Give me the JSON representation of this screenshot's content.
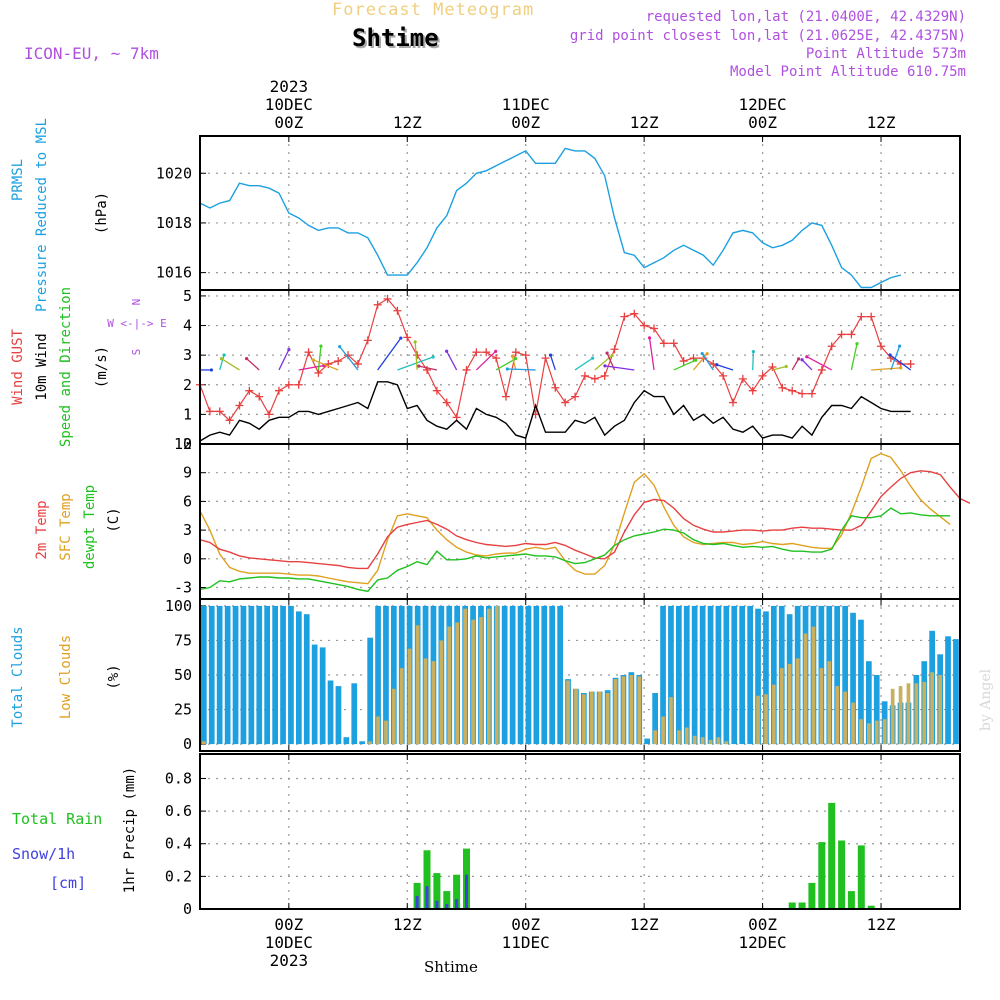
{
  "header": {
    "product": "Forecast Meteogram",
    "location": "Shtime",
    "model": "ICON-EU, ~ 7km",
    "requested": "requested lon,lat (21.0400E, 42.4329N)",
    "gridpoint": "grid point closest lon,lat (21.0625E, 42.4375N)",
    "point_alt": "Point Altitude 573m",
    "model_alt": "Model Point Altitude 610.75m",
    "credit": "by Angel",
    "footer": "Shtime"
  },
  "time_axis": {
    "year": "2023",
    "ticks": [
      "00Z",
      "12Z",
      "00Z",
      "12Z",
      "00Z",
      "12Z"
    ],
    "days": [
      "10DEC",
      "",
      "11DEC",
      "",
      "12DEC",
      ""
    ]
  },
  "colors": {
    "pressure": "#1ca0e0",
    "gust": "#e84040",
    "wind": "#000000",
    "temp": "#e84040",
    "sfc": "#e0a020",
    "dewpt": "#20c020",
    "total_cloud": "#1ca0e0",
    "low_cloud": "#c8b060",
    "rain": "#20c020",
    "snow": "#4040e0",
    "direction": "#b050e0"
  },
  "panels": {
    "pressure": {
      "label1": "PRMSL",
      "label2": "Pressure Reduced to MSL",
      "unit": "(hPa)",
      "yticks": [
        "1016",
        "1018",
        "1020"
      ]
    },
    "wind": {
      "label1": "Wind GUST",
      "label2": "10m Wind",
      "label3": "Speed and Direction",
      "unit": "(m/s)",
      "yticks": [
        "0",
        "1",
        "2",
        "3",
        "4",
        "5"
      ],
      "compass_n": "N",
      "compass_s": "S",
      "compass_ew": "W <-|-> E"
    },
    "temp": {
      "label1": "2m Temp",
      "label2": "SFC Temp",
      "label3": "dewpt Temp",
      "unit": "(C)",
      "yticks": [
        "-3",
        "0",
        "3",
        "6",
        "9",
        "12"
      ]
    },
    "clouds": {
      "label1": "Total Clouds",
      "label2": "Low Clouds",
      "unit": "(%)",
      "yticks": [
        "0",
        "25",
        "50",
        "75",
        "100"
      ]
    },
    "precip": {
      "label1": "Total  Rain",
      "label2": "Snow/1h",
      "label3": "[cm]",
      "unit": "1hr Precip (mm)",
      "yticks": [
        "0",
        "0.2",
        "0.4",
        "0.6",
        "0.8"
      ]
    }
  },
  "chart_data": [
    {
      "type": "line",
      "title": "PRMSL Pressure Reduced to MSL",
      "ylabel": "(hPa)",
      "ylim": [
        1015.3,
        1021.5
      ],
      "x_hours_start": -9,
      "x_step_hours": 1,
      "series": [
        {
          "name": "PRMSL",
          "values": [
            1018.8,
            1018.6,
            1018.8,
            1018.9,
            1019.6,
            1019.5,
            1019.5,
            1019.4,
            1019.2,
            1018.4,
            1018.2,
            1017.9,
            1017.7,
            1017.8,
            1017.8,
            1017.6,
            1017.6,
            1017.4,
            1016.7,
            1015.9,
            1015.9,
            1015.9,
            1016.4,
            1017.0,
            1017.8,
            1018.3,
            1019.3,
            1019.6,
            1020.0,
            1020.1,
            1020.3,
            1020.5,
            1020.7,
            1020.9,
            1020.4,
            1020.4,
            1020.4,
            1021.0,
            1020.9,
            1020.9,
            1020.6,
            1019.9,
            1018.2,
            1016.8,
            1016.7,
            1016.2,
            1016.4,
            1016.6,
            1016.9,
            1017.1,
            1016.9,
            1016.7,
            1016.3,
            1016.9,
            1017.6,
            1017.7,
            1017.6,
            1017.2,
            1017.0,
            1017.1,
            1017.3,
            1017.7,
            1018.0,
            1017.9,
            1017.1,
            1016.2,
            1015.9,
            1015.4,
            1015.4,
            1015.6,
            1015.8,
            1015.9
          ]
        }
      ]
    },
    {
      "type": "line",
      "title": "Wind GUST / 10m Wind Speed and Direction",
      "ylabel": "(m/s)",
      "ylim": [
        0,
        5.2
      ],
      "x_hours_start": -9,
      "x_step_hours": 1,
      "series": [
        {
          "name": "Wind GUST",
          "values": [
            2.0,
            1.1,
            1.1,
            0.8,
            1.3,
            1.8,
            1.6,
            1.0,
            1.8,
            2.0,
            2.0,
            3.1,
            2.4,
            2.7,
            2.8,
            3.0,
            2.7,
            3.5,
            4.7,
            4.9,
            4.5,
            3.6,
            3.0,
            2.5,
            1.8,
            1.4,
            0.9,
            2.5,
            3.1,
            3.1,
            2.9,
            1.6,
            3.1,
            3.0,
            1.0,
            2.9,
            1.9,
            1.4,
            1.6,
            2.3,
            2.2,
            2.3,
            3.2,
            4.3,
            4.4,
            4.0,
            3.9,
            3.4,
            3.4,
            2.8,
            2.9,
            2.9,
            2.7,
            2.3,
            1.4,
            2.2,
            1.8,
            2.3,
            2.6,
            1.9,
            1.8,
            1.7,
            1.7,
            2.5,
            3.3,
            3.7,
            3.7,
            4.3,
            4.3,
            3.3,
            2.9,
            2.7,
            2.7
          ]
        },
        {
          "name": "10m Wind",
          "values": [
            0.1,
            0.3,
            0.4,
            0.3,
            0.8,
            0.7,
            0.5,
            0.8,
            0.9,
            0.9,
            1.1,
            1.1,
            1.0,
            1.1,
            1.2,
            1.3,
            1.4,
            1.2,
            2.1,
            2.1,
            2.0,
            1.2,
            1.3,
            0.8,
            0.6,
            0.5,
            0.8,
            0.5,
            1.2,
            1.0,
            0.9,
            0.7,
            0.3,
            0.2,
            1.3,
            0.4,
            0.4,
            0.4,
            0.8,
            0.7,
            0.9,
            0.3,
            0.6,
            0.8,
            1.4,
            1.8,
            1.6,
            1.6,
            1.0,
            1.3,
            0.8,
            1.0,
            0.7,
            0.9,
            0.5,
            0.4,
            0.6,
            0.2,
            0.3,
            0.3,
            0.2,
            0.6,
            0.3,
            0.9,
            1.3,
            1.3,
            1.2,
            1.6,
            1.4,
            1.2,
            1.1,
            1.1,
            1.1
          ]
        }
      ]
    },
    {
      "type": "line",
      "title": "2m Temp / SFC Temp / dewpt Temp",
      "ylabel": "(C)",
      "ylim": [
        -4.2,
        12
      ],
      "x_hours_start": -9,
      "x_step_hours": 1,
      "series": [
        {
          "name": "2m Temp",
          "values": [
            2.0,
            1.7,
            1.0,
            0.7,
            0.3,
            0.1,
            0.0,
            -0.1,
            -0.2,
            -0.3,
            -0.3,
            -0.4,
            -0.5,
            -0.6,
            -0.7,
            -0.9,
            -1.0,
            -1.0,
            0.5,
            2.3,
            3.3,
            3.6,
            3.8,
            4.0,
            3.6,
            3.1,
            2.4,
            2.0,
            1.7,
            1.5,
            1.4,
            1.3,
            1.4,
            1.6,
            1.5,
            1.5,
            1.7,
            1.4,
            0.9,
            0.5,
            0.1,
            0.0,
            0.7,
            2.8,
            4.6,
            5.9,
            6.2,
            6.1,
            5.3,
            4.2,
            3.5,
            3.1,
            2.8,
            2.8,
            2.9,
            3.0,
            3.0,
            2.9,
            3.0,
            3.0,
            3.2,
            3.3,
            3.2,
            3.2,
            3.1,
            3.0,
            3.0,
            3.5,
            5.0,
            6.5,
            7.5,
            8.4,
            9.0,
            9.2,
            9.1,
            8.8,
            7.5,
            6.3,
            5.8
          ]
        },
        {
          "name": "SFC Temp",
          "values": [
            5.0,
            3.0,
            0.5,
            -0.9,
            -1.3,
            -1.5,
            -1.5,
            -1.5,
            -1.5,
            -1.6,
            -1.7,
            -1.7,
            -1.8,
            -2.0,
            -2.2,
            -2.4,
            -2.5,
            -2.6,
            -1.2,
            2.0,
            4.5,
            4.7,
            4.5,
            4.3,
            3.0,
            2.0,
            1.2,
            0.7,
            0.4,
            0.3,
            0.5,
            0.6,
            0.6,
            1.0,
            1.2,
            1.0,
            1.2,
            -0.2,
            -1.2,
            -1.6,
            -1.6,
            -0.7,
            1.5,
            4.8,
            8.0,
            8.9,
            7.7,
            5.4,
            3.5,
            2.3,
            1.7,
            1.5,
            1.6,
            1.7,
            1.7,
            1.5,
            1.6,
            1.8,
            1.6,
            1.5,
            1.6,
            1.4,
            1.2,
            1.1,
            1.1,
            2.5,
            4.8,
            7.5,
            10.5,
            11.0,
            10.6,
            9.2,
            7.6,
            6.2,
            5.2,
            4.4,
            3.6
          ]
        },
        {
          "name": "dewpt Temp",
          "values": [
            -3.2,
            -3.0,
            -2.3,
            -2.4,
            -2.1,
            -2.0,
            -1.9,
            -1.9,
            -2.0,
            -2.0,
            -2.1,
            -2.1,
            -2.3,
            -2.5,
            -2.7,
            -2.9,
            -3.2,
            -3.4,
            -2.2,
            -2.0,
            -1.2,
            -0.8,
            -0.3,
            -0.6,
            0.8,
            -0.1,
            -0.1,
            0.0,
            0.3,
            0.1,
            0.2,
            0.3,
            0.4,
            0.5,
            0.3,
            0.3,
            0.2,
            -0.2,
            -0.5,
            -0.4,
            0.0,
            0.4,
            1.4,
            2.0,
            2.4,
            2.6,
            2.8,
            3.1,
            3.0,
            2.7,
            2.0,
            1.6,
            1.5,
            1.6,
            1.4,
            1.2,
            1.3,
            1.2,
            1.3,
            1.0,
            0.8,
            0.8,
            0.7,
            0.7,
            1.0,
            3.0,
            4.5,
            4.3,
            4.3,
            4.5,
            5.3,
            4.7,
            4.8,
            4.6,
            4.5,
            4.5,
            4.5
          ]
        }
      ]
    },
    {
      "type": "bar",
      "title": "Total Clouds / Low Clouds",
      "ylabel": "(%)",
      "ylim": [
        -5,
        105
      ],
      "x_hours_start": -9,
      "x_step_hours": 1,
      "series": [
        {
          "name": "Total Clouds",
          "values": [
            100,
            100,
            100,
            100,
            100,
            100,
            100,
            100,
            100,
            100,
            100,
            100,
            96,
            94,
            72,
            70,
            46,
            42,
            5,
            44,
            2,
            77,
            100,
            100,
            100,
            100,
            100,
            100,
            100,
            100,
            100,
            100,
            100,
            100,
            100,
            100,
            100,
            100,
            100,
            100,
            100,
            100,
            100,
            100,
            100,
            100,
            47,
            40,
            37,
            38,
            38,
            39,
            48,
            50,
            52,
            50,
            4,
            37,
            100,
            100,
            100,
            100,
            100,
            100,
            100,
            100,
            100,
            100,
            100,
            100,
            98,
            96,
            100,
            100,
            94,
            100,
            100,
            100,
            100,
            100,
            100,
            100,
            95,
            90,
            60,
            50,
            31,
            28,
            30,
            30,
            50,
            60,
            82,
            65,
            78,
            76
          ]
        },
        {
          "name": "Low Clouds",
          "values": [
            2,
            0,
            0,
            0,
            0,
            0,
            0,
            0,
            0,
            0,
            0,
            0,
            0,
            0,
            0,
            0,
            0,
            0,
            0,
            0,
            0,
            2,
            20,
            17,
            40,
            55,
            69,
            86,
            62,
            60,
            75,
            85,
            88,
            98,
            90,
            92,
            98,
            100,
            0,
            0,
            0,
            0,
            0,
            0,
            0,
            0,
            46,
            40,
            36,
            38,
            38,
            37,
            47,
            49,
            50,
            49,
            0,
            10,
            20,
            34,
            10,
            12,
            6,
            5,
            3,
            5,
            2,
            0,
            0,
            0,
            35,
            36,
            43,
            55,
            58,
            62,
            80,
            85,
            55,
            60,
            42,
            38,
            30,
            18,
            15,
            17,
            18,
            40,
            42,
            44,
            44,
            45,
            52,
            50
          ]
        }
      ]
    },
    {
      "type": "bar",
      "title": "1hr Precip",
      "ylabel": "1hr Precip (mm)",
      "ylim": [
        0,
        0.95
      ],
      "x_hours_start": -9,
      "x_step_hours": 1,
      "series": [
        {
          "name": "Total Rain",
          "values": [
            0,
            0,
            0,
            0,
            0,
            0,
            0,
            0,
            0,
            0,
            0,
            0,
            0,
            0,
            0,
            0,
            0,
            0,
            0,
            0,
            0,
            0,
            0.16,
            0.36,
            0.22,
            0.11,
            0.21,
            0.37,
            0,
            0,
            0,
            0,
            0,
            0,
            0,
            0,
            0,
            0,
            0,
            0,
            0,
            0,
            0,
            0,
            0,
            0,
            0,
            0,
            0,
            0,
            0,
            0,
            0,
            0,
            0,
            0,
            0,
            0,
            0,
            0,
            0.04,
            0.04,
            0.16,
            0.41,
            0.65,
            0.42,
            0.11,
            0.39,
            0.02,
            0,
            0,
            0,
            0,
            0,
            0,
            0,
            0,
            0
          ]
        },
        {
          "name": "Snow/1h",
          "values": [
            0,
            0,
            0,
            0,
            0,
            0,
            0,
            0,
            0,
            0,
            0,
            0,
            0,
            0,
            0,
            0,
            0,
            0,
            0,
            0,
            0,
            0,
            0.08,
            0.14,
            0.05,
            0.03,
            0.06,
            0.21,
            0,
            0,
            0,
            0,
            0,
            0,
            0,
            0,
            0,
            0,
            0,
            0,
            0,
            0,
            0,
            0,
            0,
            0,
            0,
            0,
            0,
            0,
            0,
            0,
            0,
            0,
            0,
            0,
            0,
            0,
            0,
            0,
            0,
            0,
            0,
            0,
            0,
            0,
            0,
            0,
            0,
            0,
            0,
            0,
            0,
            0,
            0,
            0,
            0,
            0
          ]
        }
      ]
    }
  ]
}
